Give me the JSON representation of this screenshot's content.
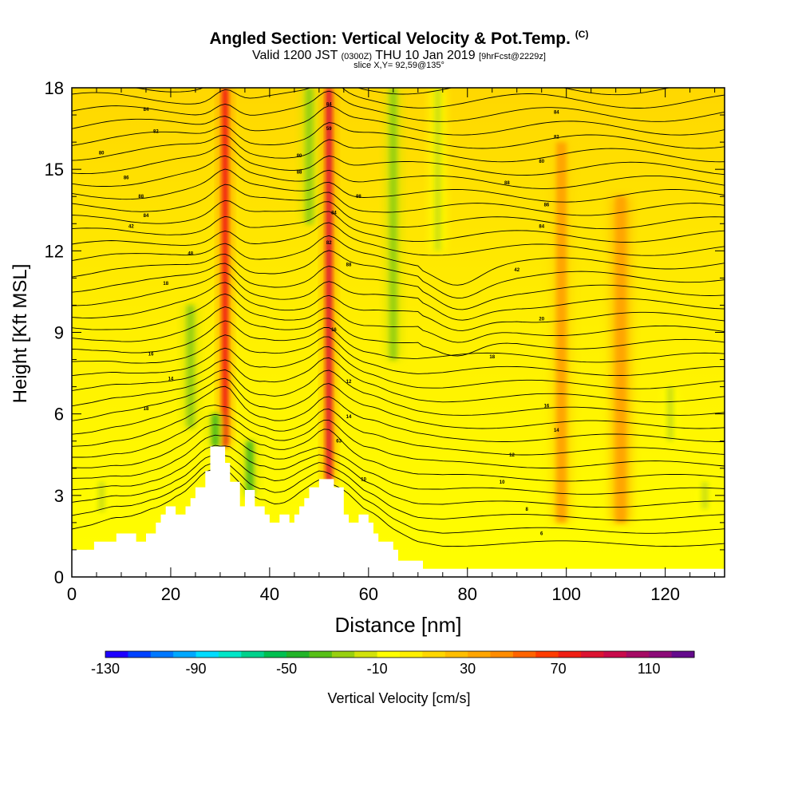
{
  "header": {
    "title": "Angled Section: Vertical Velocity & Pot.Temp.",
    "title_mark": "(C)",
    "valid_main": "Valid 1200 JST",
    "valid_small": "(0300Z)",
    "valid_date": "THU 10 Jan 2019",
    "forecast": "[9hrFcst@2229z]",
    "slice": "slice X,Y= 92,59@135°"
  },
  "chart_data": {
    "type": "heatmap",
    "xlabel": "Distance [nm]",
    "ylabel": "Height [Kft MSL]",
    "xlim": [
      0,
      132
    ],
    "ylim": [
      0,
      18
    ],
    "xticks": [
      "0",
      "20",
      "40",
      "60",
      "80",
      "100",
      "120"
    ],
    "yticks": [
      "0",
      "3",
      "6",
      "9",
      "12",
      "15",
      "18"
    ],
    "colorbar": {
      "label": "Vertical Velocity [cm/s]",
      "min": -130,
      "max": 130,
      "step": 10,
      "tick_labels": [
        "-130",
        "-90",
        "-50",
        "-10",
        "30",
        "70",
        "110"
      ],
      "colors": [
        "#1e00ff",
        "#0042ff",
        "#0078ff",
        "#00a8ff",
        "#00dcff",
        "#00e6c8",
        "#00d28c",
        "#00c050",
        "#22b428",
        "#58c018",
        "#98d010",
        "#d2e20a",
        "#ffff00",
        "#fff000",
        "#ffd700",
        "#ffbe00",
        "#ffa500",
        "#ff8c00",
        "#ff6400",
        "#ff3c00",
        "#f01e14",
        "#dc1432",
        "#c80a4b",
        "#a50a64",
        "#8c0a78",
        "#640a8c"
      ]
    },
    "velocity_features": [
      {
        "kind": "updraft",
        "x": 31,
        "y_from": 4.8,
        "y_to": 18,
        "peak": 65
      },
      {
        "kind": "updraft",
        "x": 52,
        "y_from": 3.5,
        "y_to": 18,
        "peak": 80
      },
      {
        "kind": "downdraft",
        "x": 24,
        "y_from": 5.5,
        "y_to": 10,
        "peak": -30
      },
      {
        "kind": "downdraft",
        "x": 29,
        "y_from": 4.8,
        "y_to": 6,
        "peak": -45
      },
      {
        "kind": "downdraft",
        "x": 36,
        "y_from": 3,
        "y_to": 5,
        "peak": -45
      },
      {
        "kind": "downdraft",
        "x": 48,
        "y_from": 13,
        "y_to": 18,
        "peak": -35
      },
      {
        "kind": "downdraft",
        "x": 65,
        "y_from": 8,
        "y_to": 18,
        "peak": -30
      },
      {
        "kind": "downdraft",
        "x": 74,
        "y_from": 12,
        "y_to": 18,
        "peak": -25
      },
      {
        "kind": "downdraft",
        "x": 121,
        "y_from": 5,
        "y_to": 7,
        "peak": -25
      },
      {
        "kind": "downdraft",
        "x": 128,
        "y_from": 2.5,
        "y_to": 3.5,
        "peak": -25
      },
      {
        "kind": "downdraft",
        "x": 6,
        "y_from": 2.4,
        "y_to": 3.5,
        "peak": -25
      },
      {
        "kind": "weak-updraft",
        "x": 111,
        "y_from": 2,
        "y_to": 14,
        "peak": 30
      },
      {
        "kind": "weak-updraft",
        "x": 99,
        "y_from": 2,
        "y_to": 16,
        "peak": 25
      }
    ],
    "terrain": [
      {
        "x": 0,
        "h": 1.0
      },
      {
        "x": 4.5,
        "h": 1.0
      },
      {
        "x": 4.5,
        "h": 1.3
      },
      {
        "x": 9,
        "h": 1.3
      },
      {
        "x": 9,
        "h": 1.6
      },
      {
        "x": 13,
        "h": 1.6
      },
      {
        "x": 13,
        "h": 1.3
      },
      {
        "x": 15,
        "h": 1.3
      },
      {
        "x": 15,
        "h": 1.6
      },
      {
        "x": 17,
        "h": 1.6
      },
      {
        "x": 17,
        "h": 2.0
      },
      {
        "x": 18,
        "h": 2.0
      },
      {
        "x": 18,
        "h": 2.3
      },
      {
        "x": 19,
        "h": 2.3
      },
      {
        "x": 19,
        "h": 2.6
      },
      {
        "x": 21,
        "h": 2.6
      },
      {
        "x": 21,
        "h": 2.3
      },
      {
        "x": 23,
        "h": 2.3
      },
      {
        "x": 23,
        "h": 2.6
      },
      {
        "x": 24,
        "h": 2.6
      },
      {
        "x": 24,
        "h": 2.9
      },
      {
        "x": 25,
        "h": 2.9
      },
      {
        "x": 25,
        "h": 3.3
      },
      {
        "x": 27,
        "h": 3.3
      },
      {
        "x": 27,
        "h": 3.9
      },
      {
        "x": 28,
        "h": 3.9
      },
      {
        "x": 28,
        "h": 4.8
      },
      {
        "x": 31,
        "h": 4.8
      },
      {
        "x": 31,
        "h": 4.2
      },
      {
        "x": 32,
        "h": 4.2
      },
      {
        "x": 32,
        "h": 3.5
      },
      {
        "x": 34,
        "h": 3.5
      },
      {
        "x": 34,
        "h": 2.6
      },
      {
        "x": 35,
        "h": 2.6
      },
      {
        "x": 35,
        "h": 3.2
      },
      {
        "x": 37,
        "h": 3.2
      },
      {
        "x": 37,
        "h": 2.6
      },
      {
        "x": 39,
        "h": 2.6
      },
      {
        "x": 39,
        "h": 2.3
      },
      {
        "x": 40,
        "h": 2.3
      },
      {
        "x": 40,
        "h": 2.0
      },
      {
        "x": 42,
        "h": 2.0
      },
      {
        "x": 42,
        "h": 2.3
      },
      {
        "x": 44,
        "h": 2.3
      },
      {
        "x": 44,
        "h": 2.0
      },
      {
        "x": 45,
        "h": 2.0
      },
      {
        "x": 45,
        "h": 2.3
      },
      {
        "x": 46,
        "h": 2.3
      },
      {
        "x": 46,
        "h": 2.6
      },
      {
        "x": 47,
        "h": 2.6
      },
      {
        "x": 47,
        "h": 2.9
      },
      {
        "x": 48,
        "h": 2.9
      },
      {
        "x": 48,
        "h": 3.3
      },
      {
        "x": 50,
        "h": 3.3
      },
      {
        "x": 50,
        "h": 3.6
      },
      {
        "x": 53,
        "h": 3.6
      },
      {
        "x": 53,
        "h": 3.3
      },
      {
        "x": 55,
        "h": 3.3
      },
      {
        "x": 55,
        "h": 2.3
      },
      {
        "x": 56,
        "h": 2.3
      },
      {
        "x": 56,
        "h": 2.0
      },
      {
        "x": 58,
        "h": 2.0
      },
      {
        "x": 58,
        "h": 2.3
      },
      {
        "x": 60,
        "h": 2.3
      },
      {
        "x": 60,
        "h": 2.0
      },
      {
        "x": 61,
        "h": 2.0
      },
      {
        "x": 61,
        "h": 1.6
      },
      {
        "x": 62,
        "h": 1.6
      },
      {
        "x": 62,
        "h": 1.3
      },
      {
        "x": 65,
        "h": 1.3
      },
      {
        "x": 65,
        "h": 1.0
      },
      {
        "x": 66,
        "h": 1.0
      },
      {
        "x": 66,
        "h": 0.6
      },
      {
        "x": 71,
        "h": 0.6
      },
      {
        "x": 71,
        "h": 0.3
      },
      {
        "x": 132,
        "h": 0.3
      }
    ],
    "theta_contours": {
      "base_height": 1.0,
      "spacing": 0.5,
      "count": 37
    },
    "contour_labels": [
      {
        "x": 15,
        "y": 17.2,
        "text": "84"
      },
      {
        "x": 17,
        "y": 16.4,
        "text": "82"
      },
      {
        "x": 6,
        "y": 15.6,
        "text": "80"
      },
      {
        "x": 11,
        "y": 14.7,
        "text": "86"
      },
      {
        "x": 14,
        "y": 14.0,
        "text": "88"
      },
      {
        "x": 15,
        "y": 13.3,
        "text": "84"
      },
      {
        "x": 12,
        "y": 12.9,
        "text": "42"
      },
      {
        "x": 24,
        "y": 11.9,
        "text": "48"
      },
      {
        "x": 19,
        "y": 10.8,
        "text": "18"
      },
      {
        "x": 16,
        "y": 8.2,
        "text": "16"
      },
      {
        "x": 20,
        "y": 7.3,
        "text": "14"
      },
      {
        "x": 15,
        "y": 6.2,
        "text": "18"
      },
      {
        "x": 52,
        "y": 17.4,
        "text": "84"
      },
      {
        "x": 52,
        "y": 16.5,
        "text": "59"
      },
      {
        "x": 46,
        "y": 15.5,
        "text": "80"
      },
      {
        "x": 46,
        "y": 14.9,
        "text": "88"
      },
      {
        "x": 58,
        "y": 14.0,
        "text": "98"
      },
      {
        "x": 53,
        "y": 13.4,
        "text": "84"
      },
      {
        "x": 52,
        "y": 12.3,
        "text": "82"
      },
      {
        "x": 56,
        "y": 11.5,
        "text": "88"
      },
      {
        "x": 53,
        "y": 9.1,
        "text": "16"
      },
      {
        "x": 56,
        "y": 7.2,
        "text": "12"
      },
      {
        "x": 56,
        "y": 5.9,
        "text": "14"
      },
      {
        "x": 54,
        "y": 5.0,
        "text": "63"
      },
      {
        "x": 59,
        "y": 3.6,
        "text": "10"
      },
      {
        "x": 98,
        "y": 17.1,
        "text": "84"
      },
      {
        "x": 98,
        "y": 16.2,
        "text": "82"
      },
      {
        "x": 95,
        "y": 15.3,
        "text": "80"
      },
      {
        "x": 88,
        "y": 14.5,
        "text": "88"
      },
      {
        "x": 96,
        "y": 13.7,
        "text": "86"
      },
      {
        "x": 95,
        "y": 12.9,
        "text": "84"
      },
      {
        "x": 90,
        "y": 11.3,
        "text": "42"
      },
      {
        "x": 95,
        "y": 9.5,
        "text": "20"
      },
      {
        "x": 85,
        "y": 8.1,
        "text": "18"
      },
      {
        "x": 96,
        "y": 6.3,
        "text": "16"
      },
      {
        "x": 98,
        "y": 5.4,
        "text": "14"
      },
      {
        "x": 89,
        "y": 4.5,
        "text": "12"
      },
      {
        "x": 87,
        "y": 3.5,
        "text": "10"
      },
      {
        "x": 92,
        "y": 2.5,
        "text": "8"
      },
      {
        "x": 95,
        "y": 1.6,
        "text": "6"
      }
    ]
  }
}
